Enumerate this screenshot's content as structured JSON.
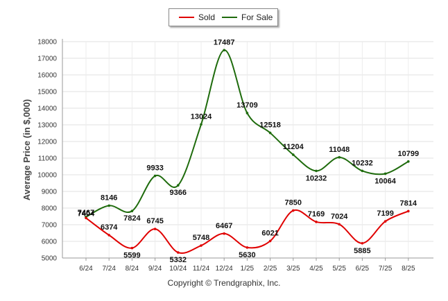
{
  "chart_data": {
    "type": "line",
    "categories": [
      "6/24",
      "7/24",
      "8/24",
      "9/24",
      "10/24",
      "11/24",
      "12/24",
      "1/25",
      "2/25",
      "3/25",
      "4/25",
      "5/25",
      "6/25",
      "7/25",
      "8/25"
    ],
    "series": [
      {
        "name": "Sold",
        "color": "#e00000",
        "values": [
          7404,
          6374,
          5599,
          6745,
          5332,
          5748,
          6467,
          5630,
          6021,
          7850,
          7169,
          7024,
          5885,
          7199,
          7814
        ]
      },
      {
        "name": "For Sale",
        "color": "#1e6b0c",
        "values": [
          7467,
          8146,
          7824,
          9933,
          9366,
          13024,
          17487,
          13709,
          12518,
          11204,
          10232,
          11048,
          10232,
          10064,
          10799
        ]
      }
    ],
    "ylabel": "Average Price (in $,000)",
    "ylim": [
      5000,
      18000
    ],
    "yticks": [
      5000,
      6000,
      7000,
      8000,
      9000,
      10000,
      11000,
      12000,
      13000,
      14000,
      15000,
      16000,
      17000,
      18000
    ],
    "grid": true,
    "legend_position": "top-center"
  },
  "footer": {
    "copyright": "Copyright © Trendgraphix, Inc."
  }
}
